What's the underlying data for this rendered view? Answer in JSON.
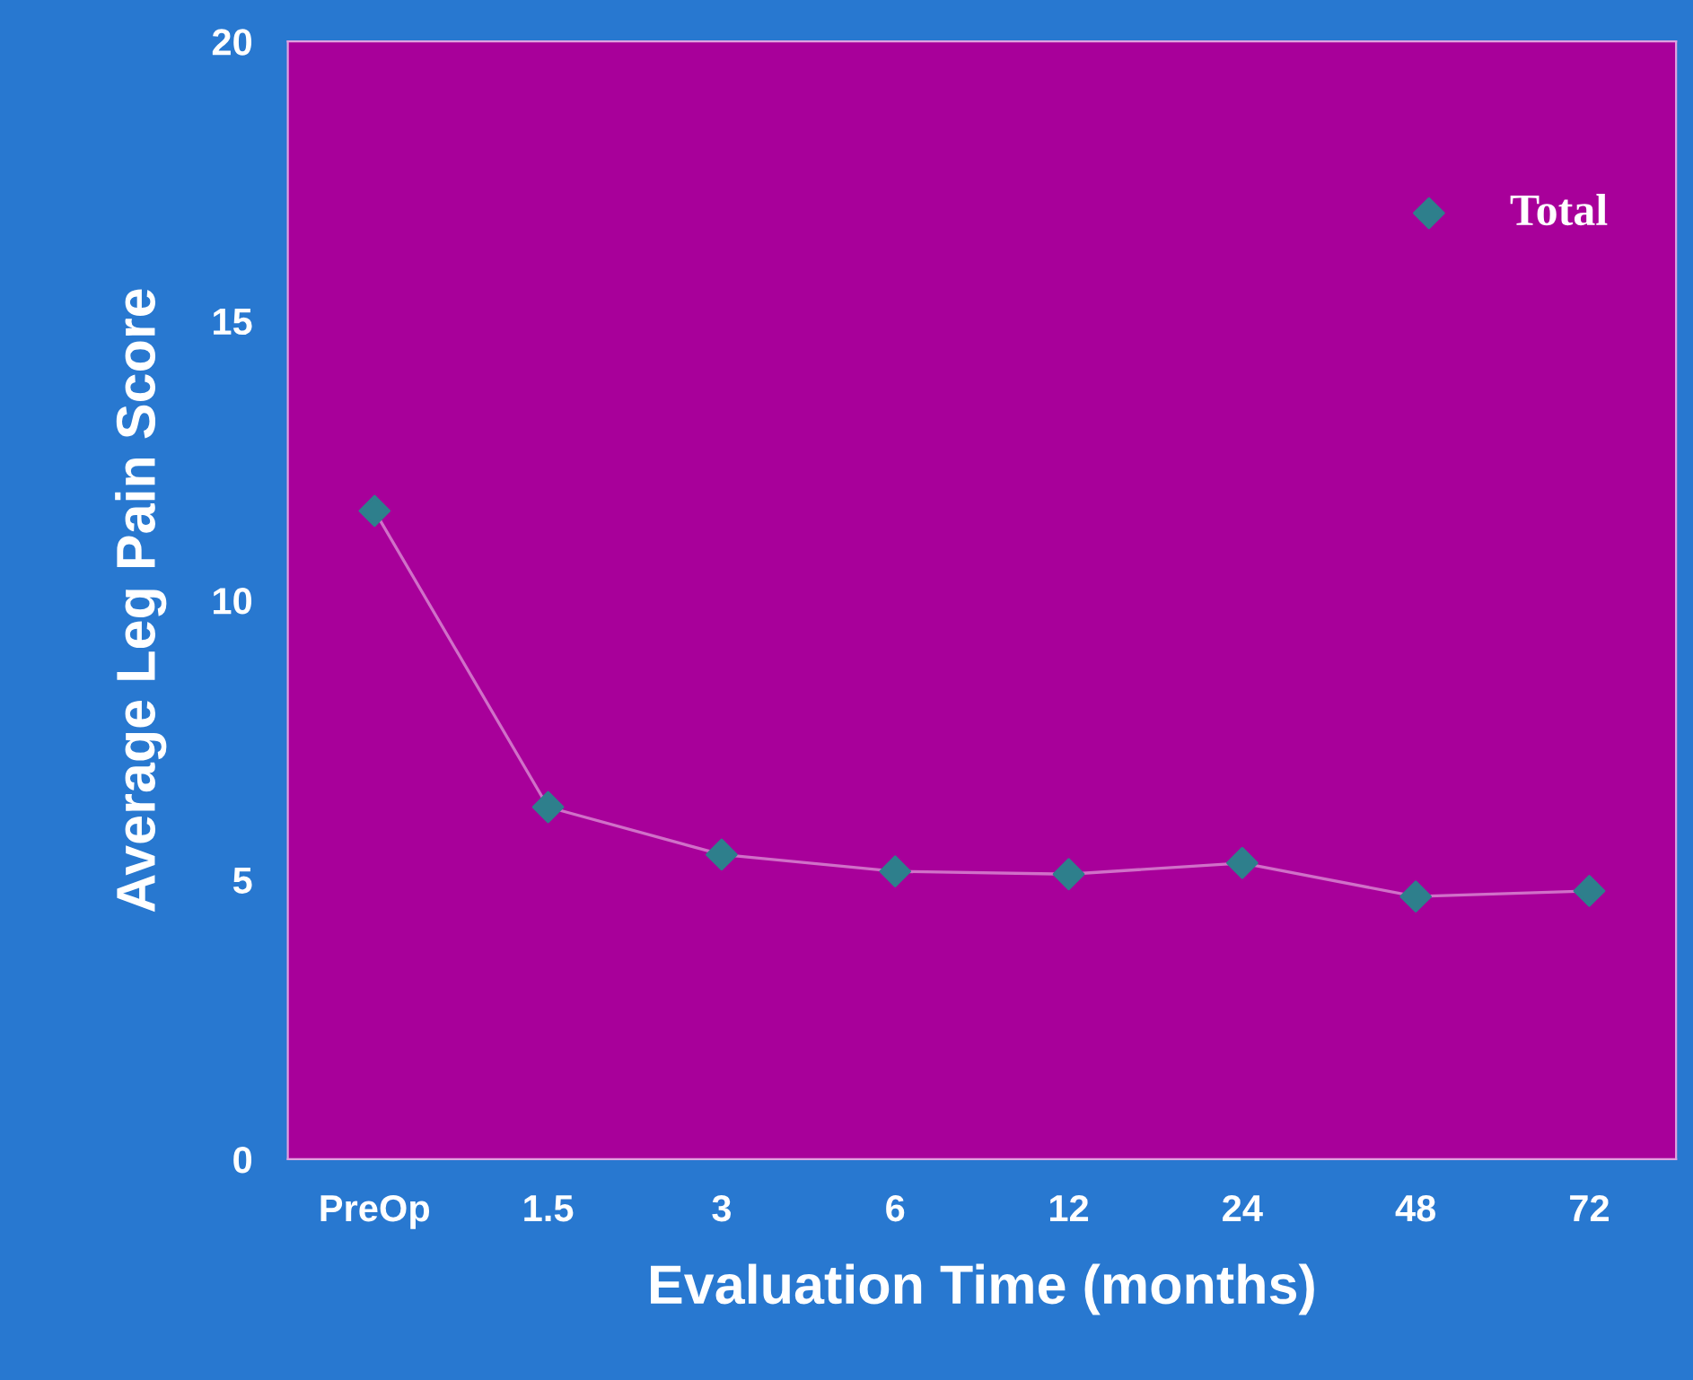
{
  "chart_data": {
    "type": "line",
    "xlabel": "Evaluation Time (months)",
    "ylabel": "Average Leg Pain Score",
    "categories": [
      "PreOp",
      "1.5",
      "3",
      "6",
      "12",
      "24",
      "48",
      "72"
    ],
    "series": [
      {
        "name": "Total",
        "color": "#2e7f8c",
        "values": [
          11.6,
          6.3,
          5.45,
          5.15,
          5.1,
          5.3,
          4.7,
          4.8
        ]
      }
    ],
    "ylim": [
      0,
      20
    ],
    "yticks": [
      0,
      5,
      10,
      15,
      20
    ],
    "marker": "diamond",
    "line_style": "solid",
    "legend": "top right",
    "grid": false
  }
}
